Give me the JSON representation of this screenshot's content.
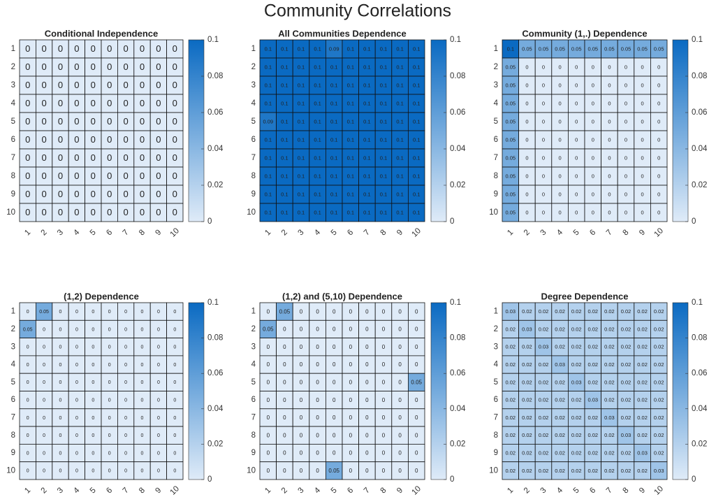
{
  "title": "Community Correlations",
  "chart_data": [
    {
      "type": "heatmap",
      "title": "Conditional Independence",
      "x": [
        "1",
        "2",
        "3",
        "4",
        "5",
        "6",
        "7",
        "8",
        "9",
        "10"
      ],
      "y": [
        "1",
        "2",
        "3",
        "4",
        "5",
        "6",
        "7",
        "8",
        "9",
        "10"
      ],
      "values": [
        [
          0,
          0,
          0,
          0,
          0,
          0,
          0,
          0,
          0,
          0
        ],
        [
          0,
          0,
          0,
          0,
          0,
          0,
          0,
          0,
          0,
          0
        ],
        [
          0,
          0,
          0,
          0,
          0,
          0,
          0,
          0,
          0,
          0
        ],
        [
          0,
          0,
          0,
          0,
          0,
          0,
          0,
          0,
          0,
          0
        ],
        [
          0,
          0,
          0,
          0,
          0,
          0,
          0,
          0,
          0,
          0
        ],
        [
          0,
          0,
          0,
          0,
          0,
          0,
          0,
          0,
          0,
          0
        ],
        [
          0,
          0,
          0,
          0,
          0,
          0,
          0,
          0,
          0,
          0
        ],
        [
          0,
          0,
          0,
          0,
          0,
          0,
          0,
          0,
          0,
          0
        ],
        [
          0,
          0,
          0,
          0,
          0,
          0,
          0,
          0,
          0,
          0
        ],
        [
          0,
          0,
          0,
          0,
          0,
          0,
          0,
          0,
          0,
          0
        ]
      ],
      "clim": [
        0,
        0.1
      ],
      "cticks": [
        0,
        0.02,
        0.04,
        0.06,
        0.08,
        0.1
      ],
      "colormap": [
        "#dfebf8",
        "#0a6ac2"
      ]
    },
    {
      "type": "heatmap",
      "title": "All Communities Dependence",
      "x": [
        "1",
        "2",
        "3",
        "4",
        "5",
        "6",
        "7",
        "8",
        "9",
        "10"
      ],
      "y": [
        "1",
        "2",
        "3",
        "4",
        "5",
        "6",
        "7",
        "8",
        "9",
        "10"
      ],
      "values": [
        [
          0.1,
          0.1,
          0.1,
          0.1,
          0.09,
          0.1,
          0.1,
          0.1,
          0.1,
          0.1
        ],
        [
          0.1,
          0.1,
          0.1,
          0.1,
          0.1,
          0.1,
          0.1,
          0.1,
          0.1,
          0.1
        ],
        [
          0.1,
          0.1,
          0.1,
          0.1,
          0.1,
          0.1,
          0.1,
          0.1,
          0.1,
          0.1
        ],
        [
          0.1,
          0.1,
          0.1,
          0.1,
          0.1,
          0.1,
          0.1,
          0.1,
          0.1,
          0.1
        ],
        [
          0.09,
          0.1,
          0.1,
          0.1,
          0.1,
          0.1,
          0.1,
          0.1,
          0.1,
          0.1
        ],
        [
          0.1,
          0.1,
          0.1,
          0.1,
          0.1,
          0.1,
          0.1,
          0.1,
          0.1,
          0.1
        ],
        [
          0.1,
          0.1,
          0.1,
          0.1,
          0.1,
          0.1,
          0.1,
          0.1,
          0.1,
          0.1
        ],
        [
          0.1,
          0.1,
          0.1,
          0.1,
          0.1,
          0.1,
          0.1,
          0.1,
          0.1,
          0.1
        ],
        [
          0.1,
          0.1,
          0.1,
          0.1,
          0.1,
          0.1,
          0.1,
          0.1,
          0.1,
          0.1
        ],
        [
          0.1,
          0.1,
          0.1,
          0.1,
          0.1,
          0.1,
          0.1,
          0.1,
          0.1,
          0.1
        ]
      ],
      "clim": [
        0,
        0.1
      ],
      "cticks": [
        0,
        0.02,
        0.04,
        0.06,
        0.08,
        0.1
      ],
      "colormap": [
        "#dfebf8",
        "#0a6ac2"
      ]
    },
    {
      "type": "heatmap",
      "title": "Community (1,.) Dependence",
      "x": [
        "1",
        "2",
        "3",
        "4",
        "5",
        "6",
        "7",
        "8",
        "9",
        "10"
      ],
      "y": [
        "1",
        "2",
        "3",
        "4",
        "5",
        "6",
        "7",
        "8",
        "9",
        "10"
      ],
      "values": [
        [
          0.1,
          0.05,
          0.05,
          0.05,
          0.05,
          0.05,
          0.05,
          0.05,
          0.05,
          0.05
        ],
        [
          0.05,
          0,
          0,
          0,
          0,
          0,
          0,
          0,
          0,
          0
        ],
        [
          0.05,
          0,
          0,
          0,
          0,
          0,
          0,
          0,
          0,
          0
        ],
        [
          0.05,
          0,
          0,
          0,
          0,
          0,
          0,
          0,
          0,
          0
        ],
        [
          0.05,
          0,
          0,
          0,
          0,
          0,
          0,
          0,
          0,
          0
        ],
        [
          0.05,
          0,
          0,
          0,
          0,
          0,
          0,
          0,
          0,
          0
        ],
        [
          0.05,
          0,
          0,
          0,
          0,
          0,
          0,
          0,
          0,
          0
        ],
        [
          0.05,
          0,
          0,
          0,
          0,
          0,
          0,
          0,
          0,
          0
        ],
        [
          0.05,
          0,
          0,
          0,
          0,
          0,
          0,
          0,
          0,
          0
        ],
        [
          0.05,
          0,
          0,
          0,
          0,
          0,
          0,
          0,
          0,
          0
        ]
      ],
      "clim": [
        0,
        0.1
      ],
      "cticks": [
        0,
        0.02,
        0.04,
        0.06,
        0.08,
        0.1
      ],
      "colormap": [
        "#dfebf8",
        "#0a6ac2"
      ]
    },
    {
      "type": "heatmap",
      "title": "(1,2) Dependence",
      "x": [
        "1",
        "2",
        "3",
        "4",
        "5",
        "6",
        "7",
        "8",
        "9",
        "10"
      ],
      "y": [
        "1",
        "2",
        "3",
        "4",
        "5",
        "6",
        "7",
        "8",
        "9",
        "10"
      ],
      "values": [
        [
          0,
          0.05,
          0,
          0,
          0,
          0,
          0,
          0,
          0,
          0
        ],
        [
          0.05,
          0,
          0,
          0,
          0,
          0,
          0,
          0,
          0,
          0
        ],
        [
          0,
          0,
          0,
          0,
          0,
          0,
          0,
          0,
          0,
          0
        ],
        [
          0,
          0,
          0,
          0,
          0,
          0,
          0,
          0,
          0,
          0
        ],
        [
          0,
          0,
          0,
          0,
          0,
          0,
          0,
          0,
          0,
          0
        ],
        [
          0,
          0,
          0,
          0,
          0,
          0,
          0,
          0,
          0,
          0
        ],
        [
          0,
          0,
          0,
          0,
          0,
          0,
          0,
          0,
          0,
          0
        ],
        [
          0,
          0,
          0,
          0,
          0,
          0,
          0,
          0,
          0,
          0
        ],
        [
          0,
          0,
          0,
          0,
          0,
          0,
          0,
          0,
          0,
          0
        ],
        [
          0,
          0,
          0,
          0,
          0,
          0,
          0,
          0,
          0,
          0
        ]
      ],
      "clim": [
        0,
        0.1
      ],
      "cticks": [
        0,
        0.02,
        0.04,
        0.06,
        0.08,
        0.1
      ],
      "colormap": [
        "#dfebf8",
        "#0a6ac2"
      ]
    },
    {
      "type": "heatmap",
      "title": "(1,2) and (5,10) Dependence",
      "x": [
        "1",
        "2",
        "3",
        "4",
        "5",
        "6",
        "7",
        "8",
        "9",
        "10"
      ],
      "y": [
        "1",
        "2",
        "3",
        "4",
        "5",
        "6",
        "7",
        "8",
        "9",
        "10"
      ],
      "values": [
        [
          0,
          0.05,
          0,
          0,
          0,
          0,
          0,
          0,
          0,
          0
        ],
        [
          0.05,
          0,
          0,
          0,
          0,
          0,
          0,
          0,
          0,
          0
        ],
        [
          0,
          0,
          0,
          0,
          0,
          0,
          0,
          0,
          0,
          0
        ],
        [
          0,
          0,
          0,
          0,
          0,
          0,
          0,
          0,
          0,
          0
        ],
        [
          0,
          0,
          0,
          0,
          0,
          0,
          0,
          0,
          0,
          0.05
        ],
        [
          0,
          0,
          0,
          0,
          0,
          0,
          0,
          0,
          0,
          0
        ],
        [
          0,
          0,
          0,
          0,
          0,
          0,
          0,
          0,
          0,
          0
        ],
        [
          0,
          0,
          0,
          0,
          0,
          0,
          0,
          0,
          0,
          0
        ],
        [
          0,
          0,
          0,
          0,
          0,
          0,
          0,
          0,
          0,
          0
        ],
        [
          0,
          0,
          0,
          0,
          0.05,
          0,
          0,
          0,
          0,
          0
        ]
      ],
      "clim": [
        0,
        0.1
      ],
      "cticks": [
        0,
        0.02,
        0.04,
        0.06,
        0.08,
        0.1
      ],
      "colormap": [
        "#dfebf8",
        "#0a6ac2"
      ]
    },
    {
      "type": "heatmap",
      "title": "Degree Dependence",
      "x": [
        "1",
        "2",
        "3",
        "4",
        "5",
        "6",
        "7",
        "8",
        "9",
        "10"
      ],
      "y": [
        "1",
        "2",
        "3",
        "4",
        "5",
        "6",
        "7",
        "8",
        "9",
        "10"
      ],
      "values": [
        [
          0.03,
          0.02,
          0.02,
          0.02,
          0.02,
          0.02,
          0.02,
          0.02,
          0.02,
          0.02
        ],
        [
          0.02,
          0.03,
          0.02,
          0.02,
          0.02,
          0.02,
          0.02,
          0.02,
          0.02,
          0.02
        ],
        [
          0.02,
          0.02,
          0.03,
          0.02,
          0.02,
          0.02,
          0.02,
          0.02,
          0.02,
          0.02
        ],
        [
          0.02,
          0.02,
          0.02,
          0.03,
          0.02,
          0.02,
          0.02,
          0.02,
          0.02,
          0.02
        ],
        [
          0.02,
          0.02,
          0.02,
          0.02,
          0.03,
          0.02,
          0.02,
          0.02,
          0.02,
          0.02
        ],
        [
          0.02,
          0.02,
          0.02,
          0.02,
          0.02,
          0.03,
          0.02,
          0.02,
          0.02,
          0.02
        ],
        [
          0.02,
          0.02,
          0.02,
          0.02,
          0.02,
          0.02,
          0.03,
          0.02,
          0.02,
          0.02
        ],
        [
          0.02,
          0.02,
          0.02,
          0.02,
          0.02,
          0.02,
          0.02,
          0.03,
          0.02,
          0.02
        ],
        [
          0.02,
          0.02,
          0.02,
          0.02,
          0.02,
          0.02,
          0.02,
          0.02,
          0.03,
          0.02
        ],
        [
          0.02,
          0.02,
          0.02,
          0.02,
          0.02,
          0.02,
          0.02,
          0.02,
          0.02,
          0.03
        ]
      ],
      "clim": [
        0,
        0.1
      ],
      "cticks": [
        0,
        0.02,
        0.04,
        0.06,
        0.08,
        0.1
      ],
      "colormap": [
        "#dfebf8",
        "#0a6ac2"
      ]
    }
  ]
}
